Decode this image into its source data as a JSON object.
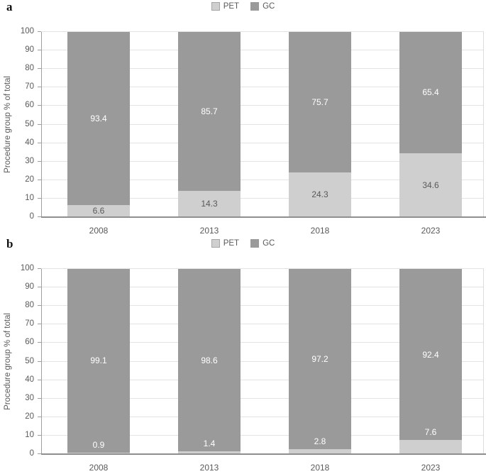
{
  "chart_data": [
    {
      "type": "bar",
      "stacked": true,
      "panel_label": "a",
      "categories": [
        "2008",
        "2013",
        "2018",
        "2023"
      ],
      "series": [
        {
          "name": "PET",
          "color": "#cfcfcf",
          "values": [
            6.6,
            14.3,
            24.3,
            34.6
          ]
        },
        {
          "name": "GC",
          "color": "#9a9a9a",
          "values": [
            93.4,
            85.7,
            75.7,
            65.4
          ]
        }
      ],
      "title": "",
      "xlabel": "",
      "ylabel": "Procedure group % of total",
      "ylim": [
        0,
        100
      ],
      "ytick_step": 10,
      "grid": true,
      "legend_position": "top-center",
      "pet_label_placement": "inside-dark",
      "gc_label_placement": "center-white"
    },
    {
      "type": "bar",
      "stacked": true,
      "panel_label": "b",
      "categories": [
        "2008",
        "2013",
        "2018",
        "2023"
      ],
      "series": [
        {
          "name": "PET",
          "color": "#cfcfcf",
          "values": [
            0.9,
            1.4,
            2.8,
            7.6
          ]
        },
        {
          "name": "GC",
          "color": "#9a9a9a",
          "values": [
            99.1,
            98.6,
            97.2,
            92.4
          ]
        }
      ],
      "title": "",
      "xlabel": "",
      "ylabel": "Procedure group % of total",
      "ylim": [
        0,
        100
      ],
      "ytick_step": 10,
      "grid": true,
      "legend_position": "top-center",
      "pet_label_placement": "above-white",
      "gc_label_placement": "center-white"
    }
  ],
  "colors": {
    "pet_fill": "#cfcfcf",
    "gc_fill": "#9a9a9a",
    "gridline": "#e3e3e3",
    "axis_line": "#8f8f8f",
    "axis_text": "#595959",
    "data_label_on_dark": "#ffffff",
    "data_label_on_light": "#595959"
  }
}
